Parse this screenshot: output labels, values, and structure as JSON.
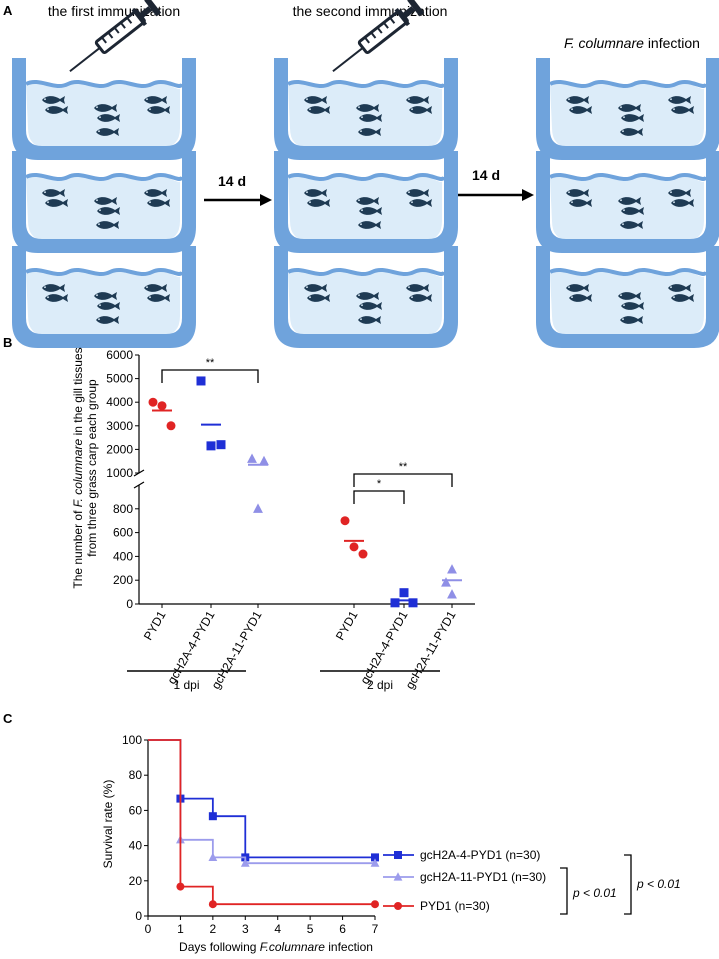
{
  "panel_a": {
    "label": "A",
    "headers": [
      "the first immunization",
      "the second immunization",
      "infection"
    ],
    "infection_species": "F. columnare",
    "arrows": [
      "14 d",
      "14 d"
    ],
    "colors": {
      "tank": "#6fa3dc",
      "water": "#dcecf9",
      "fish": "#1f3b54",
      "syringe": "#1d2633"
    }
  },
  "chart_data": [
    {
      "panel": "B",
      "type": "scatter",
      "title": "",
      "ylabel_parts": [
        "The number of ",
        "F. columnare",
        " in the gill tissues"
      ],
      "ylabel_line2": "from three grass carp  each group",
      "ylabel": "The number of F. columnare in the gill tissues from three grass carp each group",
      "y_axis": "broken",
      "y_upper": {
        "range": [
          1000,
          6000
        ],
        "ticks": [
          "1000",
          "2000",
          "3000",
          "4000",
          "5000",
          "6000"
        ]
      },
      "y_lower": {
        "range": [
          0,
          1000
        ],
        "ticks": [
          "0",
          "200",
          "400",
          "600",
          "800"
        ]
      },
      "categories": [
        "PYD1",
        "gcH2A-4-PYD1",
        "gcH2A-11-PYD1",
        "PYD1",
        "gcH2A-4-PYD1",
        "gcH2A-11-PYD1"
      ],
      "groups": [
        {
          "label": "1 dpi",
          "series": [
            {
              "name": "PYD1",
              "color": "#e02424",
              "marker": "circle",
              "points": [
                4000,
                3850,
                3000
              ],
              "mean": 3650
            },
            {
              "name": "gcH2A-4-PYD1",
              "color": "#1f2fd6",
              "marker": "square",
              "points": [
                4900,
                2200,
                2150
              ],
              "mean": 3050
            },
            {
              "name": "gcH2A-11-PYD1",
              "color": "#8f8fe6",
              "marker": "triangle",
              "points": [
                1600,
                1500,
                800
              ],
              "mean": 1350
            }
          ]
        },
        {
          "label": "2 dpi",
          "series": [
            {
              "name": "PYD1",
              "color": "#e02424",
              "marker": "circle",
              "points": [
                700,
                480,
                420
              ],
              "mean": 530
            },
            {
              "name": "gcH2A-4-PYD1",
              "color": "#1f2fd6",
              "marker": "square",
              "points": [
                95,
                10,
                10
              ],
              "mean": 30
            },
            {
              "name": "gcH2A-11-PYD1",
              "color": "#8f8fe6",
              "marker": "triangle",
              "points": [
                290,
                180,
                80
              ],
              "mean": 200
            }
          ]
        }
      ],
      "significance": [
        {
          "group": 0,
          "from": 0,
          "to": 2,
          "label": "**"
        },
        {
          "group": 1,
          "from": 0,
          "to": 1,
          "label": "*"
        },
        {
          "group": 1,
          "from": 0,
          "to": 2,
          "label": "**"
        }
      ]
    },
    {
      "panel": "C",
      "type": "line",
      "title": "",
      "xlabel_parts": [
        "Days following ",
        "F.columnare",
        " infection"
      ],
      "xlabel": "Days following F.columnare infection",
      "ylabel": "Survival rate (%)",
      "xlim": [
        0,
        7
      ],
      "ylim": [
        0,
        100
      ],
      "xticks": [
        "0",
        "1",
        "2",
        "3",
        "4",
        "5",
        "6",
        "7"
      ],
      "yticks": [
        "0",
        "20",
        "40",
        "60",
        "80",
        "100"
      ],
      "legend_position": "right",
      "series": [
        {
          "name": "gcH2A-4-PYD1 (n=30)",
          "color": "#1f2fd6",
          "marker": "square",
          "steps": [
            [
              0,
              100
            ],
            [
              1,
              66.7
            ],
            [
              2,
              56.7
            ],
            [
              3,
              33.3
            ],
            [
              7,
              33.3
            ]
          ]
        },
        {
          "name": "gcH2A-11-PYD1 (n=30)",
          "color": "#9c9cec",
          "marker": "triangle",
          "steps": [
            [
              0,
              100
            ],
            [
              1,
              43.3
            ],
            [
              2,
              33.3
            ],
            [
              3,
              30
            ],
            [
              7,
              30
            ]
          ]
        },
        {
          "name": "PYD1 (n=30)",
          "color": "#e02424",
          "marker": "circle",
          "steps": [
            [
              0,
              100
            ],
            [
              1,
              16.7
            ],
            [
              2,
              6.7
            ],
            [
              7,
              6.7
            ]
          ]
        }
      ],
      "pvalues": [
        "p < 0.01",
        "p < 0.01"
      ]
    }
  ]
}
